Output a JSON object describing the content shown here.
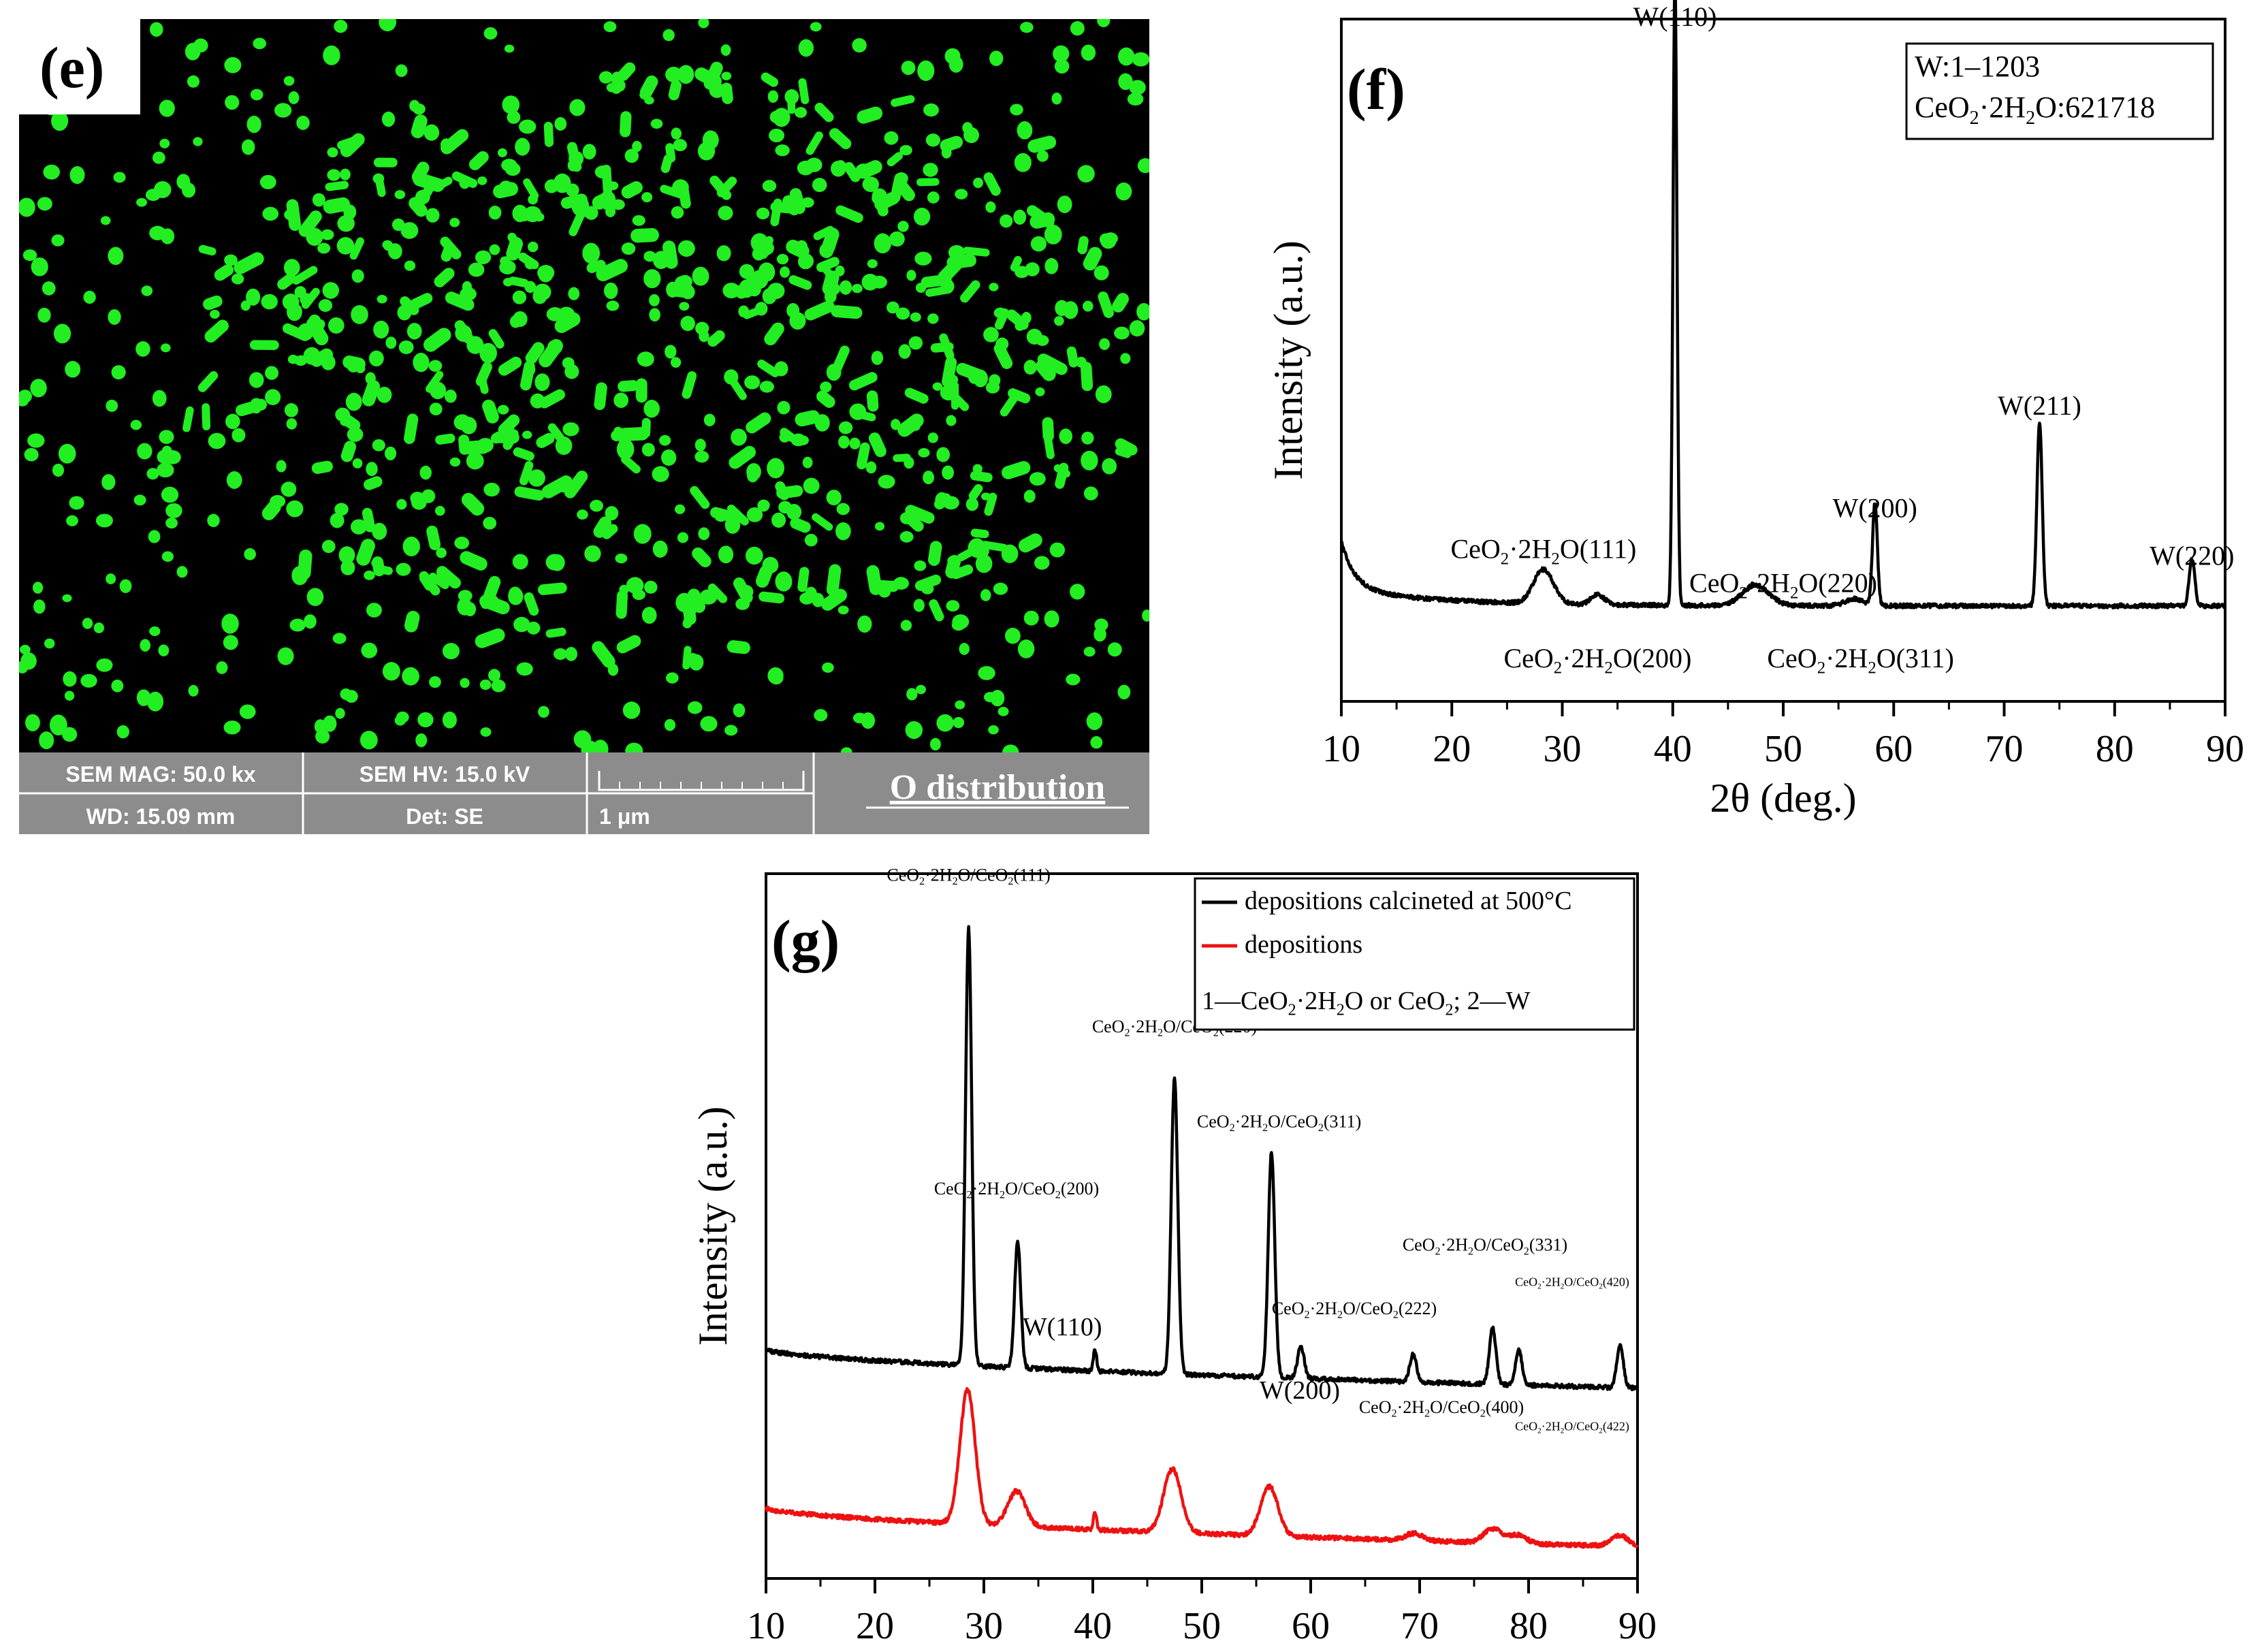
{
  "panel_e": {
    "label": "(e)",
    "info": {
      "mag": "SEM MAG: 50.0 kx",
      "hv": "SEM HV: 15.0 kV",
      "wd": "WD: 15.09 mm",
      "det": "Det: SE",
      "scale": "1 μm"
    },
    "title": "O distribution",
    "colors": {
      "dots": "#22ee22",
      "background": "#000000",
      "bar": "#8c8c8c"
    }
  },
  "chart_data": [
    {
      "panel": "(f)",
      "type": "line",
      "xlabel": "2θ (deg.)",
      "ylabel": "Intensity (a.u.)",
      "xlim": [
        10,
        90
      ],
      "xticks": [
        10,
        20,
        30,
        40,
        50,
        60,
        70,
        80,
        90
      ],
      "legend": {
        "position": "top-right",
        "lines": [
          "W:1–1203",
          "CeO₂·2H₂O:621718"
        ]
      },
      "series": [
        {
          "color": "#000000",
          "baseline": 0.14,
          "peaks": [
            {
              "x": 28.3,
              "y": 0.05,
              "w": 0.9
            },
            {
              "x": 33.2,
              "y": 0.015,
              "w": 0.6
            },
            {
              "x": 40.2,
              "y": 0.92,
              "w": 0.18
            },
            {
              "x": 47.5,
              "y": 0.03,
              "w": 1.2
            },
            {
              "x": 56.4,
              "y": 0.01,
              "w": 0.8
            },
            {
              "x": 58.3,
              "y": 0.15,
              "w": 0.22
            },
            {
              "x": 73.2,
              "y": 0.27,
              "w": 0.24
            },
            {
              "x": 87.0,
              "y": 0.07,
              "w": 0.25
            }
          ]
        }
      ],
      "annotations": [
        {
          "text": "W(110)",
          "x": 40.2,
          "y": 0.99
        },
        {
          "text": "W(211)",
          "x": 73.2,
          "y": 0.42
        },
        {
          "text": "W(200)",
          "x": 58.3,
          "y": 0.27
        },
        {
          "text": "W(220)",
          "x": 87.0,
          "y": 0.2
        },
        {
          "text": "CeO₂·2H₂O(111)",
          "x": 28.3,
          "y": 0.21
        },
        {
          "text": "CeO₂·2H₂O(200)",
          "x": 33.2,
          "y": 0.05
        },
        {
          "text": "CeO₂·2H₂O(220)",
          "x": 50.0,
          "y": 0.16
        },
        {
          "text": "CeO₂·2H₂O(311)",
          "x": 57.0,
          "y": 0.05
        }
      ]
    },
    {
      "panel": "(g)",
      "type": "line",
      "xlabel": "",
      "ylabel": "Intensity (a.u.)",
      "xlim": [
        10,
        90
      ],
      "xticks": [
        10,
        20,
        30,
        40,
        50,
        60,
        70,
        80,
        90
      ],
      "legend": {
        "position": "top-right",
        "entries": [
          "depositions calcineted at 500°C",
          "depositions"
        ],
        "note": "1—CeO₂·2H₂O or CeO₂; 2—W"
      },
      "series": [
        {
          "name": "depositions calcineted at 500°C",
          "color": "#000000",
          "baseline_start": 0.325,
          "baseline_end": 0.27,
          "peaks": [
            {
              "x": 28.6,
              "y": 0.62,
              "w": 0.28
            },
            {
              "x": 33.1,
              "y": 0.18,
              "w": 0.28
            },
            {
              "x": 40.2,
              "y": 0.03,
              "w": 0.15
            },
            {
              "x": 47.5,
              "y": 0.42,
              "w": 0.3
            },
            {
              "x": 56.4,
              "y": 0.32,
              "w": 0.3
            },
            {
              "x": 59.1,
              "y": 0.045,
              "w": 0.3
            },
            {
              "x": 69.4,
              "y": 0.04,
              "w": 0.3
            },
            {
              "x": 76.7,
              "y": 0.08,
              "w": 0.3
            },
            {
              "x": 79.1,
              "y": 0.05,
              "w": 0.3
            },
            {
              "x": 88.4,
              "y": 0.06,
              "w": 0.3
            }
          ]
        },
        {
          "name": "depositions",
          "color": "#ee1111",
          "baseline_start": 0.1,
          "baseline_end": 0.045,
          "peaks": [
            {
              "x": 28.5,
              "y": 0.19,
              "w": 0.7
            },
            {
              "x": 33.0,
              "y": 0.05,
              "w": 0.8
            },
            {
              "x": 40.2,
              "y": 0.025,
              "w": 0.15
            },
            {
              "x": 47.3,
              "y": 0.09,
              "w": 0.8
            },
            {
              "x": 56.2,
              "y": 0.07,
              "w": 0.8
            },
            {
              "x": 69.5,
              "y": 0.01,
              "w": 0.8
            },
            {
              "x": 76.7,
              "y": 0.02,
              "w": 0.8
            },
            {
              "x": 79.0,
              "y": 0.012,
              "w": 0.8
            },
            {
              "x": 88.4,
              "y": 0.015,
              "w": 0.8
            }
          ]
        }
      ],
      "annotations": [
        {
          "text": "CeO₂·2H₂O/CeO₂(111)",
          "x": 28.6,
          "y": 0.99,
          "size": "s"
        },
        {
          "text": "CeO₂·2H₂O/CeO₂(200)",
          "x": 33.0,
          "y": 0.545,
          "size": "s"
        },
        {
          "text": "CeO₂·2H₂O/CeO₂(220)",
          "x": 47.5,
          "y": 0.775,
          "size": "s"
        },
        {
          "text": "CeO₂·2H₂O/CeO₂(311)",
          "x": 57.1,
          "y": 0.64,
          "size": "s"
        },
        {
          "text": "CeO₂·2H₂O/CeO₂(222)",
          "x": 64.0,
          "y": 0.375,
          "size": "s"
        },
        {
          "text": "CeO₂·2H₂O/CeO₂(331)",
          "x": 76.0,
          "y": 0.465,
          "size": "s"
        },
        {
          "text": "CeO₂·2H₂O/CeO₂(420)",
          "x": 84.0,
          "y": 0.415,
          "size": "xs"
        },
        {
          "text": "CeO₂·2H₂O/CeO₂(400)",
          "x": 72.0,
          "y": 0.235,
          "size": "s"
        },
        {
          "text": "CeO₂·2H₂O/CeO₂(422)",
          "x": 84.0,
          "y": 0.21,
          "size": "xs"
        },
        {
          "text": "W(110)",
          "x": 37.2,
          "y": 0.345,
          "size": "m"
        },
        {
          "text": "W(200)",
          "x": 59.0,
          "y": 0.255,
          "size": "m"
        }
      ]
    }
  ]
}
